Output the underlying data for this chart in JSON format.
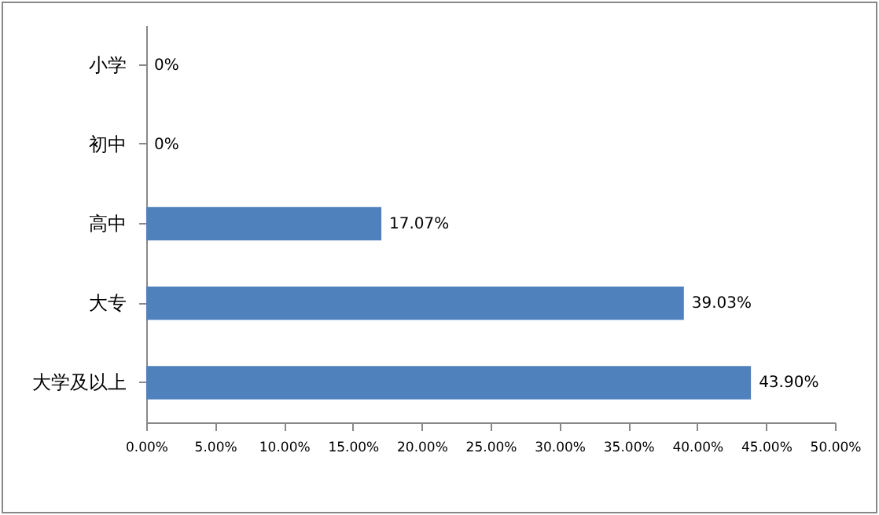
{
  "chart_data": {
    "type": "bar",
    "orientation": "horizontal",
    "categories": [
      "小学",
      "初中",
      "高中",
      "大专",
      "大学及以上"
    ],
    "values": [
      0,
      0,
      17.07,
      39.03,
      43.9
    ],
    "value_labels": [
      "0%",
      "0%",
      "17.07%",
      "39.03%",
      "43.90%"
    ],
    "color": "#4f81bd",
    "xlim": [
      0,
      50
    ],
    "xticks": [
      {
        "value": 0,
        "label": "0.00%"
      },
      {
        "value": 5,
        "label": "5.00%"
      },
      {
        "value": 10,
        "label": "10.00%"
      },
      {
        "value": 15,
        "label": "15.00%"
      },
      {
        "value": 20,
        "label": "20.00%"
      },
      {
        "value": 25,
        "label": "25.00%"
      },
      {
        "value": 30,
        "label": "30.00%"
      },
      {
        "value": 35,
        "label": "35.00%"
      },
      {
        "value": 40,
        "label": "40.00%"
      },
      {
        "value": 45,
        "label": "45.00%"
      },
      {
        "value": 50,
        "label": "50.00%"
      }
    ],
    "grid": false
  }
}
